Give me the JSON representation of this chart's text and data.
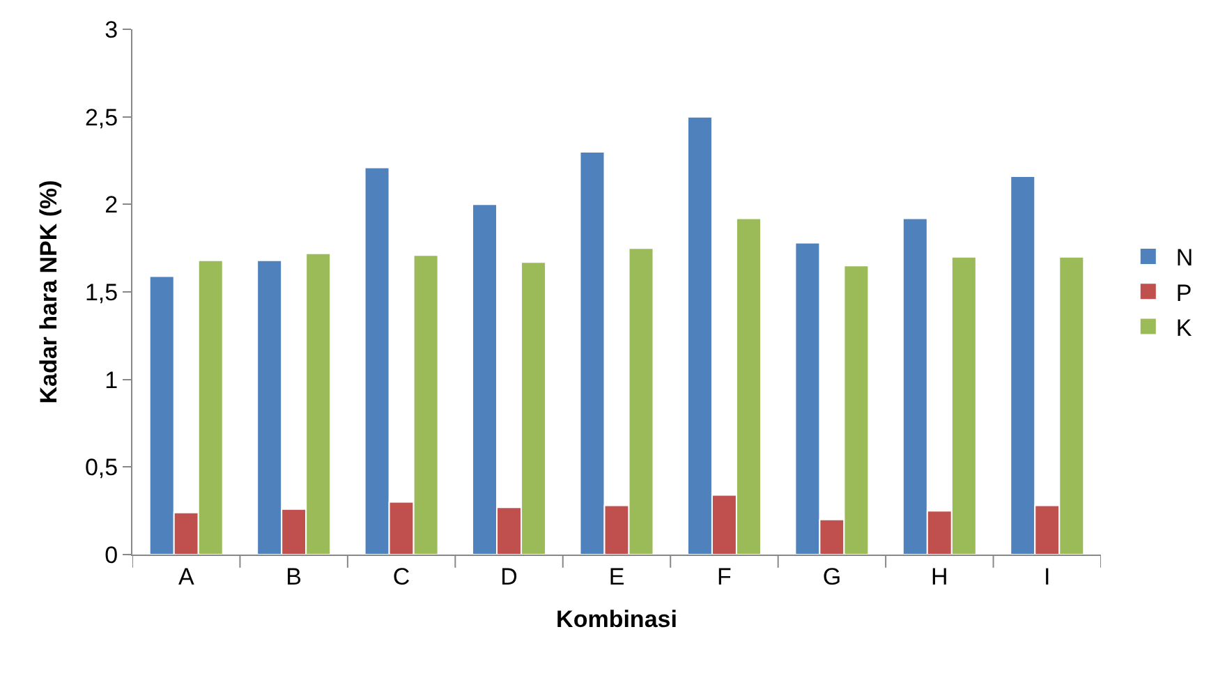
{
  "chart_data": {
    "type": "bar",
    "xlabel": "Kombinasi",
    "ylabel": "Kadar hara NPK (%)",
    "categories": [
      "A",
      "B",
      "C",
      "D",
      "E",
      "F",
      "G",
      "H",
      "I"
    ],
    "series": [
      {
        "name": "N",
        "color": "#4f81bd",
        "values": [
          1.59,
          1.68,
          2.21,
          2.0,
          2.3,
          2.5,
          1.78,
          1.92,
          2.16
        ]
      },
      {
        "name": "P",
        "color": "#c0504d",
        "values": [
          0.24,
          0.26,
          0.3,
          0.27,
          0.28,
          0.34,
          0.2,
          0.25,
          0.28
        ]
      },
      {
        "name": "K",
        "color": "#9bbb59",
        "values": [
          1.68,
          1.72,
          1.71,
          1.67,
          1.75,
          1.92,
          1.65,
          1.7,
          1.7
        ]
      }
    ],
    "ylim": [
      0,
      3
    ],
    "yticks": [
      0,
      {
        "value": 0.5,
        "label": "0,5"
      },
      1,
      {
        "value": 1.5,
        "label": "1,5"
      },
      2,
      {
        "value": 2.5,
        "label": "2,5"
      },
      3
    ],
    "legend": "right"
  }
}
